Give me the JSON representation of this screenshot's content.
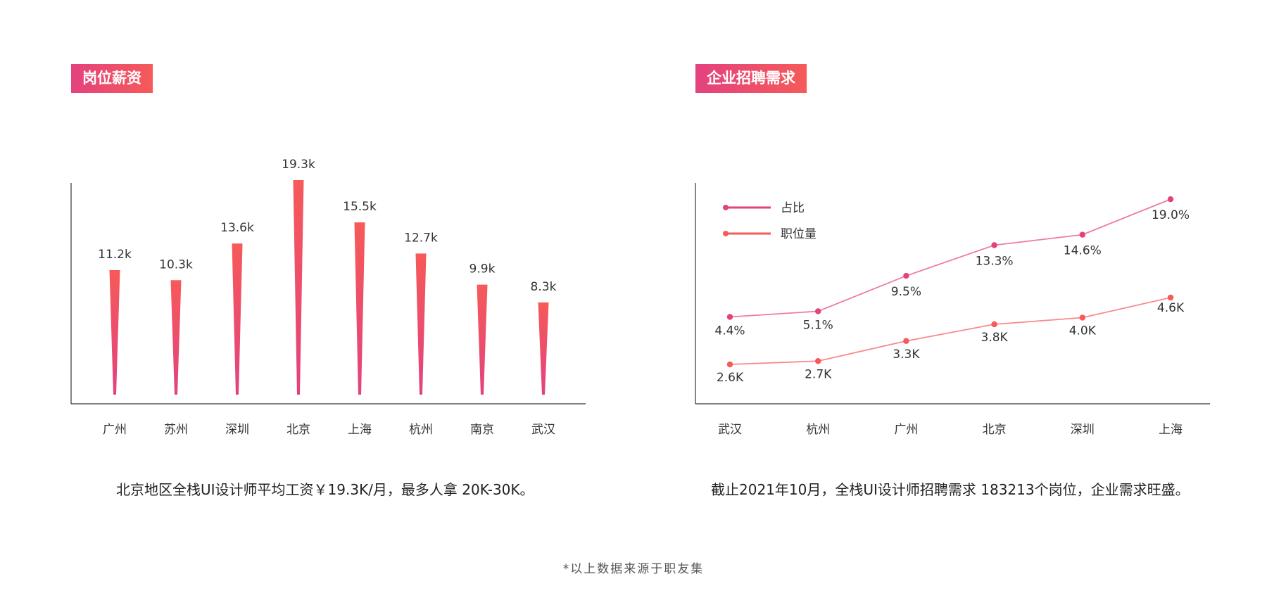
{
  "left_panel": {
    "tag": "岗位薪资",
    "caption": "北京地区全栈UI设计师平均工资￥19.3K/月，最多人拿 20K-30K。"
  },
  "right_panel": {
    "tag": "企业招聘需求",
    "caption": "截止2021年10月，全栈UI设计师招聘需求 183213个岗位，企业需求旺盛。"
  },
  "footnote": "*以上数据来源于职友集",
  "colors": {
    "gradient_top": "#f65a59",
    "gradient_bottom": "#e3427e",
    "series_share": "#e3427e",
    "series_share_line": "#ee7aa8",
    "series_jobs": "#f65a59",
    "series_jobs_line": "#f8898a",
    "axis": "#333333"
  },
  "chart_data": [
    {
      "type": "bar",
      "categories": [
        "广州",
        "苏州",
        "深圳",
        "北京",
        "上海",
        "杭州",
        "南京",
        "武汉"
      ],
      "values": [
        11.2,
        10.3,
        13.6,
        19.3,
        15.5,
        12.7,
        9.9,
        8.3
      ],
      "labels": [
        "11.2k",
        "10.3k",
        "13.6k",
        "19.3k",
        "15.5k",
        "12.7k",
        "9.9k",
        "8.3k"
      ],
      "ylim": [
        0,
        20.5
      ],
      "bar_shape": "tapered-spike",
      "grid": false
    },
    {
      "type": "line",
      "categories": [
        "武汉",
        "杭州",
        "广州",
        "北京",
        "深圳",
        "上海"
      ],
      "series": [
        {
          "name": "占比",
          "values": [
            4.4,
            5.1,
            9.5,
            13.3,
            14.6,
            19.0
          ],
          "labels": [
            "4.4%",
            "5.1%",
            "9.5%",
            "13.3%",
            "14.6%",
            "19.0%"
          ]
        },
        {
          "name": "职位量",
          "values": [
            2.6,
            2.7,
            3.3,
            3.8,
            4.0,
            4.6
          ],
          "labels": [
            "2.6K",
            "2.7K",
            "3.3K",
            "3.8K",
            "4.0K",
            "4.6K"
          ]
        }
      ],
      "legend_position": "top-left",
      "grid": false
    }
  ]
}
